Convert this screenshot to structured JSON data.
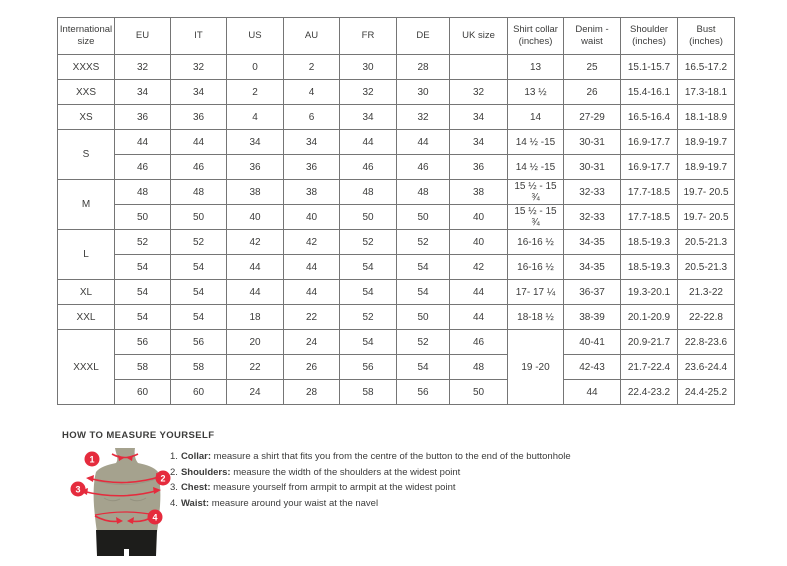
{
  "table": {
    "headers": [
      "International size",
      "EU",
      "IT",
      "US",
      "AU",
      "FR",
      "DE",
      "UK size",
      "Shirt collar (inches)",
      "Denim - waist",
      "Shoulder (inches)",
      "Bust (inches)"
    ],
    "rows": [
      [
        "XXXS",
        "32",
        "32",
        "0",
        "2",
        "30",
        "28",
        "",
        "13",
        "25",
        "15.1-15.7",
        "16.5-17.2"
      ],
      [
        "XXS",
        "34",
        "34",
        "2",
        "4",
        "32",
        "30",
        "32",
        "13 ½",
        "26",
        "15.4-16.1",
        "17.3-18.1"
      ],
      [
        "XS",
        "36",
        "36",
        "4",
        "6",
        "34",
        "32",
        "34",
        "14",
        "27-29",
        "16.5-16.4",
        "18.1-18.9"
      ],
      [
        {
          "t": "S",
          "rs": 2
        },
        "44",
        "44",
        "34",
        "34",
        "44",
        "44",
        "34",
        "14 ½ -15",
        "30-31",
        "16.9-17.7",
        "18.9-19.7"
      ],
      [
        null,
        "46",
        "46",
        "36",
        "36",
        "46",
        "46",
        "36",
        "14 ½ -15",
        "30-31",
        "16.9-17.7",
        "18.9-19.7"
      ],
      [
        {
          "t": "M",
          "rs": 2
        },
        "48",
        "48",
        "38",
        "38",
        "48",
        "48",
        "38",
        "15 ½ - 15 ¾",
        "32-33",
        "17.7-18.5",
        "19.7- 20.5"
      ],
      [
        null,
        "50",
        "50",
        "40",
        "40",
        "50",
        "50",
        "40",
        "15 ½ - 15 ¾",
        "32-33",
        "17.7-18.5",
        "19.7- 20.5"
      ],
      [
        {
          "t": "L",
          "rs": 2
        },
        "52",
        "52",
        "42",
        "42",
        "52",
        "52",
        "40",
        "16-16 ½",
        "34-35",
        "18.5-19.3",
        "20.5-21.3"
      ],
      [
        null,
        "54",
        "54",
        "44",
        "44",
        "54",
        "54",
        "42",
        "16-16 ½",
        "34-35",
        "18.5-19.3",
        "20.5-21.3"
      ],
      [
        "XL",
        "54",
        "54",
        "44",
        "44",
        "54",
        "54",
        "44",
        "17- 17 ¼",
        "36-37",
        "19.3-20.1",
        "21.3-22"
      ],
      [
        "XXL",
        "54",
        "54",
        "18",
        "22",
        "52",
        "50",
        "44",
        "18-18 ½",
        "38-39",
        "20.1-20.9",
        "22-22.8"
      ],
      [
        {
          "t": "XXXL",
          "rs": 3
        },
        "56",
        "56",
        "20",
        "24",
        "54",
        "52",
        "46",
        {
          "t": "19 -20",
          "rs": 3
        },
        "40-41",
        "20.9-21.7",
        "22.8-23.6"
      ],
      [
        null,
        "58",
        "58",
        "22",
        "26",
        "56",
        "54",
        "48",
        null,
        "42-43",
        "21.7-22.4",
        "23.6-24.4"
      ],
      [
        null,
        "60",
        "60",
        "24",
        "28",
        "58",
        "56",
        "50",
        null,
        "44",
        "22.4-23.2",
        "24.4-25.2"
      ]
    ]
  },
  "measure": {
    "title": "HOW TO MEASURE YOURSELF",
    "steps": [
      {
        "num": "1.",
        "label": "Collar:",
        "text": " measure a shirt that fits you from the centre of the button to the end of the buttonhole"
      },
      {
        "num": "2.",
        "label": "Shoulders:",
        "text": " measure the width of the shoulders at the widest point"
      },
      {
        "num": "3.",
        "label": "Chest:",
        "text": " measure yourself from armpit to armpit at the widest point"
      },
      {
        "num": "4.",
        "label": "Waist:",
        "text": " measure around your waist at the navel"
      }
    ],
    "markers": [
      "1",
      "2",
      "3",
      "4"
    ]
  },
  "colors": {
    "accent_red": "#e52b3d",
    "torso": "#a5a28e",
    "torso_shade": "#908d7c",
    "shorts": "#1d1d1b",
    "border": "#757575",
    "text": "#3c3c3b"
  }
}
